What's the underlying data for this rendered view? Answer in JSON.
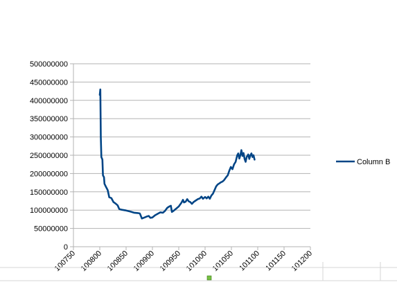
{
  "chart_data": {
    "type": "line",
    "title": "",
    "xlabel": "",
    "ylabel": "",
    "xlim": [
      100750,
      101200
    ],
    "ylim": [
      0,
      500000000
    ],
    "x_ticks": [
      "100750",
      "100800",
      "100850",
      "100900",
      "100950",
      "101000",
      "101050",
      "101100",
      "101150",
      "101200"
    ],
    "y_ticks": [
      "500000000",
      "450000000",
      "400000000",
      "350000000",
      "300000000",
      "250000000",
      "200000000",
      "150000000",
      "100000000",
      "50000000",
      "0"
    ],
    "grid": "horizontal",
    "legend": "right",
    "series": [
      {
        "name": "Column B",
        "color": "#004586",
        "points": [
          [
            100800,
            415000000
          ],
          [
            100801,
            430000000
          ],
          [
            100802,
            300000000
          ],
          [
            100803,
            245000000
          ],
          [
            100805,
            238000000
          ],
          [
            100806,
            195000000
          ],
          [
            100808,
            190000000
          ],
          [
            100809,
            172000000
          ],
          [
            100812,
            163000000
          ],
          [
            100815,
            155000000
          ],
          [
            100818,
            135000000
          ],
          [
            100822,
            133000000
          ],
          [
            100826,
            122000000
          ],
          [
            100830,
            118000000
          ],
          [
            100834,
            113000000
          ],
          [
            100837,
            103000000
          ],
          [
            100842,
            101000000
          ],
          [
            100850,
            99000000
          ],
          [
            100858,
            96000000
          ],
          [
            100865,
            93000000
          ],
          [
            100872,
            92000000
          ],
          [
            100876,
            91000000
          ],
          [
            100880,
            77000000
          ],
          [
            100885,
            80000000
          ],
          [
            100890,
            83000000
          ],
          [
            100893,
            84000000
          ],
          [
            100896,
            79000000
          ],
          [
            100900,
            80000000
          ],
          [
            100905,
            86000000
          ],
          [
            100910,
            90000000
          ],
          [
            100915,
            94000000
          ],
          [
            100920,
            93000000
          ],
          [
            100924,
            98000000
          ],
          [
            100928,
            106000000
          ],
          [
            100932,
            110000000
          ],
          [
            100935,
            112000000
          ],
          [
            100937,
            95000000
          ],
          [
            100940,
            98000000
          ],
          [
            100945,
            104000000
          ],
          [
            100950,
            110000000
          ],
          [
            100955,
            120000000
          ],
          [
            100958,
            128000000
          ],
          [
            100960,
            121000000
          ],
          [
            100963,
            123000000
          ],
          [
            100966,
            130000000
          ],
          [
            100969,
            124000000
          ],
          [
            100972,
            122000000
          ],
          [
            100975,
            117000000
          ],
          [
            100978,
            122000000
          ],
          [
            100982,
            126000000
          ],
          [
            100986,
            130000000
          ],
          [
            100990,
            132000000
          ],
          [
            100993,
            137000000
          ],
          [
            100996,
            131000000
          ],
          [
            101000,
            136000000
          ],
          [
            101003,
            132000000
          ],
          [
            101006,
            137000000
          ],
          [
            101009,
            131000000
          ],
          [
            101012,
            140000000
          ],
          [
            101015,
            145000000
          ],
          [
            101018,
            155000000
          ],
          [
            101021,
            165000000
          ],
          [
            101024,
            170000000
          ],
          [
            101027,
            173000000
          ],
          [
            101030,
            176000000
          ],
          [
            101033,
            178000000
          ],
          [
            101036,
            182000000
          ],
          [
            101040,
            190000000
          ],
          [
            101043,
            195000000
          ],
          [
            101046,
            208000000
          ],
          [
            101049,
            218000000
          ],
          [
            101052,
            212000000
          ],
          [
            101055,
            225000000
          ],
          [
            101058,
            232000000
          ],
          [
            101061,
            250000000
          ],
          [
            101063,
            255000000
          ],
          [
            101065,
            241000000
          ],
          [
            101067,
            250000000
          ],
          [
            101069,
            264000000
          ],
          [
            101071,
            248000000
          ],
          [
            101073,
            256000000
          ],
          [
            101075,
            240000000
          ],
          [
            101077,
            232000000
          ],
          [
            101079,
            245000000
          ],
          [
            101082,
            252000000
          ],
          [
            101084,
            240000000
          ],
          [
            101086,
            250000000
          ],
          [
            101088,
            255000000
          ],
          [
            101090,
            245000000
          ],
          [
            101092,
            250000000
          ],
          [
            101094,
            238000000
          ]
        ]
      }
    ]
  }
}
